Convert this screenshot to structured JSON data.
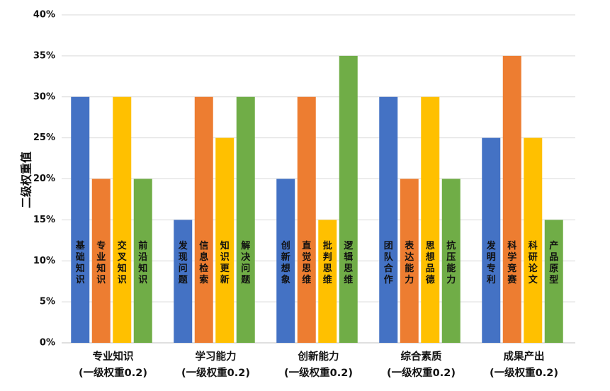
{
  "chart_data": {
    "type": "bar",
    "title": "",
    "ylabel": "二级权重值",
    "ylim": [
      0,
      40
    ],
    "yticks": [
      "0%",
      "5%",
      "10%",
      "15%",
      "20%",
      "25%",
      "30%",
      "35%",
      "40%"
    ],
    "grid": "horizontal",
    "groups": [
      {
        "name": "专业知识",
        "sub": "(一级权重0.2)",
        "bars": [
          {
            "label": "基础知识",
            "value": 30
          },
          {
            "label": "专业知识",
            "value": 20
          },
          {
            "label": "交叉知识",
            "value": 30
          },
          {
            "label": "前沿知识",
            "value": 20
          }
        ]
      },
      {
        "name": "学习能力",
        "sub": "(一级权重0.2)",
        "bars": [
          {
            "label": "发现问题",
            "value": 15
          },
          {
            "label": "信息检索",
            "value": 30
          },
          {
            "label": "知识更新",
            "value": 25
          },
          {
            "label": "解决问题",
            "value": 30
          }
        ]
      },
      {
        "name": "创新能力",
        "sub": "(一级权重0.2)",
        "bars": [
          {
            "label": "创新想象",
            "value": 20
          },
          {
            "label": "直觉思维",
            "value": 30
          },
          {
            "label": "批判思维",
            "value": 15
          },
          {
            "label": "逻辑思维",
            "value": 35
          }
        ]
      },
      {
        "name": "综合素质",
        "sub": "(一级权重0.2)",
        "bars": [
          {
            "label": "团队合作",
            "value": 30
          },
          {
            "label": "表达能力",
            "value": 20
          },
          {
            "label": "思想品德",
            "value": 30
          },
          {
            "label": "抗压能力",
            "value": 20
          }
        ]
      },
      {
        "name": "成果产出",
        "sub": "(一级权重0.2)",
        "bars": [
          {
            "label": "发明专利",
            "value": 25
          },
          {
            "label": "科学竞赛",
            "value": 35
          },
          {
            "label": "科研论文",
            "value": 25
          },
          {
            "label": "产品原型",
            "value": 15
          }
        ]
      }
    ],
    "colors": [
      "#4472C4",
      "#ED7D31",
      "#FFC000",
      "#70AD47"
    ]
  }
}
